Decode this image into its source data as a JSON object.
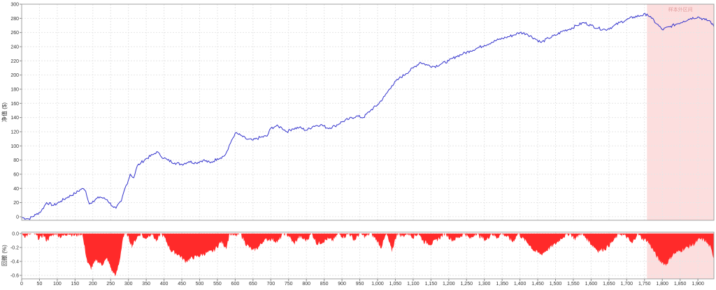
{
  "chart_data": [
    {
      "type": "line",
      "ylabel": "净值 ($)",
      "xlim": [
        0,
        1945
      ],
      "ylim": [
        -5,
        300
      ],
      "yticks": [
        0,
        20,
        40,
        60,
        80,
        100,
        120,
        140,
        160,
        180,
        200,
        220,
        240,
        260,
        280,
        300
      ],
      "grid": true,
      "highlight_region": {
        "x": [
          1757,
          1945
        ],
        "label": "样本外区间",
        "color": "#fcdede"
      },
      "series": [
        {
          "color": "#3333cc",
          "x": [
            0,
            20,
            40,
            55,
            70,
            90,
            110,
            130,
            150,
            170,
            180,
            190,
            200,
            220,
            240,
            255,
            265,
            280,
            290,
            300,
            305,
            315,
            325,
            335,
            350,
            370,
            380,
            390,
            410,
            430,
            450,
            470,
            490,
            510,
            530,
            550,
            570,
            580,
            590,
            600,
            615,
            630,
            650,
            670,
            690,
            700,
            715,
            730,
            745,
            760,
            780,
            800,
            820,
            840,
            860,
            880,
            900,
            920,
            940,
            960,
            980,
            1000,
            1020,
            1040,
            1060,
            1080,
            1100,
            1120,
            1140,
            1160,
            1180,
            1200,
            1220,
            1240,
            1260,
            1280,
            1300,
            1320,
            1340,
            1360,
            1380,
            1400,
            1420,
            1440,
            1460,
            1480,
            1500,
            1520,
            1540,
            1560,
            1580,
            1600,
            1620,
            1640,
            1660,
            1680,
            1700,
            1720,
            1740,
            1757,
            1770,
            1785,
            1800,
            1820,
            1840,
            1860,
            1880,
            1900,
            1920,
            1935,
            1945
          ],
          "values": [
            -1,
            -3,
            3,
            8,
            20,
            16,
            22,
            28,
            33,
            40,
            36,
            18,
            22,
            28,
            24,
            15,
            12,
            22,
            40,
            52,
            60,
            55,
            72,
            76,
            82,
            88,
            92,
            86,
            80,
            76,
            74,
            78,
            76,
            80,
            76,
            82,
            86,
            95,
            108,
            118,
            115,
            110,
            108,
            112,
            114,
            125,
            128,
            126,
            120,
            124,
            126,
            122,
            128,
            130,
            125,
            128,
            134,
            138,
            142,
            140,
            150,
            158,
            170,
            185,
            195,
            202,
            210,
            218,
            214,
            212,
            216,
            220,
            226,
            230,
            234,
            238,
            242,
            246,
            250,
            253,
            256,
            260,
            258,
            252,
            246,
            252,
            256,
            262,
            265,
            270,
            274,
            270,
            266,
            264,
            268,
            274,
            278,
            282,
            284,
            286,
            280,
            272,
            264,
            268,
            272,
            276,
            280,
            282,
            278,
            276,
            268
          ]
        }
      ]
    },
    {
      "type": "area",
      "ylabel": "回撤 (%)",
      "xlim": [
        0,
        1945
      ],
      "ylim": [
        -0.65,
        0.02
      ],
      "yticks": [
        0.0,
        -0.2,
        -0.4,
        -0.6
      ],
      "grid": true,
      "xticks": [
        0,
        50,
        100,
        150,
        200,
        250,
        300,
        350,
        400,
        450,
        500,
        550,
        600,
        650,
        700,
        750,
        800,
        850,
        900,
        950,
        1000,
        1050,
        1100,
        1150,
        1200,
        1250,
        1300,
        1350,
        1400,
        1450,
        1500,
        1550,
        1600,
        1650,
        1700,
        1750,
        1800,
        1850,
        1900
      ],
      "xtick_labels": [
        "0",
        "50",
        "100",
        "150",
        "200",
        "250",
        "300",
        "350",
        "400",
        "450",
        "500",
        "550",
        "600",
        "650",
        "700",
        "750",
        "800",
        "850",
        "900",
        "950",
        "1,000",
        "1,050",
        "1,100",
        "1,150",
        "1,200",
        "1,250",
        "1,300",
        "1,350",
        "1,400",
        "1,450",
        "1,500",
        "1,550",
        "1,600",
        "1,650",
        "1,700",
        "1,750",
        "1,800",
        "1,850",
        "1,900"
      ],
      "highlight_region": {
        "x": [
          1757,
          1945
        ]
      },
      "series": [
        {
          "color": "#ff2a2a",
          "x": [
            0,
            10,
            25,
            35,
            50,
            60,
            70,
            85,
            95,
            110,
            130,
            150,
            170,
            175,
            185,
            195,
            210,
            225,
            240,
            255,
            265,
            275,
            285,
            295,
            310,
            325,
            335,
            345,
            365,
            380,
            390,
            400,
            420,
            440,
            460,
            480,
            500,
            520,
            540,
            560,
            575,
            585,
            600,
            615,
            630,
            650,
            665,
            680,
            700,
            720,
            735,
            750,
            765,
            780,
            800,
            815,
            830,
            845,
            860,
            875,
            890,
            905,
            920,
            935,
            950,
            965,
            980,
            995,
            1010,
            1025,
            1040,
            1055,
            1070,
            1085,
            1100,
            1115,
            1130,
            1150,
            1170,
            1190,
            1210,
            1230,
            1245,
            1260,
            1275,
            1290,
            1305,
            1320,
            1335,
            1350,
            1365,
            1380,
            1395,
            1410,
            1425,
            1440,
            1460,
            1480,
            1500,
            1520,
            1540,
            1555,
            1570,
            1585,
            1600,
            1620,
            1640,
            1660,
            1680,
            1700,
            1715,
            1730,
            1745,
            1757,
            1770,
            1790,
            1810,
            1830,
            1850,
            1870,
            1890,
            1905,
            1920,
            1935,
            1945
          ],
          "values": [
            0,
            -0.04,
            -0.01,
            0,
            -0.08,
            -0.02,
            -0.1,
            -0.03,
            0,
            -0.05,
            0,
            -0.03,
            0,
            -0.15,
            -0.42,
            -0.5,
            -0.38,
            -0.45,
            -0.36,
            -0.55,
            -0.6,
            -0.4,
            -0.05,
            0,
            -0.18,
            -0.05,
            0,
            -0.08,
            0,
            -0.12,
            0,
            -0.05,
            -0.25,
            -0.3,
            -0.4,
            -0.35,
            -0.32,
            -0.28,
            -0.25,
            -0.12,
            -0.2,
            0,
            -0.04,
            0,
            -0.15,
            -0.25,
            -0.2,
            -0.1,
            -0.08,
            -0.12,
            0,
            -0.03,
            -0.15,
            -0.05,
            -0.1,
            0,
            -0.15,
            -0.12,
            -0.08,
            -0.1,
            0,
            -0.05,
            0,
            -0.1,
            0,
            -0.05,
            0,
            -0.08,
            -0.2,
            0,
            -0.25,
            0,
            -0.04,
            0,
            -0.05,
            0,
            -0.12,
            -0.15,
            -0.08,
            0,
            -0.1,
            -0.05,
            0,
            -0.08,
            0,
            -0.05,
            -0.1,
            0,
            -0.06,
            0,
            -0.05,
            -0.12,
            0,
            -0.08,
            -0.15,
            -0.25,
            -0.3,
            -0.22,
            -0.15,
            -0.05,
            0,
            -0.08,
            0,
            -0.06,
            -0.15,
            -0.25,
            -0.22,
            -0.12,
            0,
            -0.05,
            -0.15,
            0,
            -0.08,
            -0.1,
            -0.2,
            -0.38,
            -0.45,
            -0.3,
            -0.25,
            -0.2,
            -0.15,
            -0.08,
            -0.1,
            -0.2,
            -0.35
          ]
        }
      ]
    }
  ]
}
